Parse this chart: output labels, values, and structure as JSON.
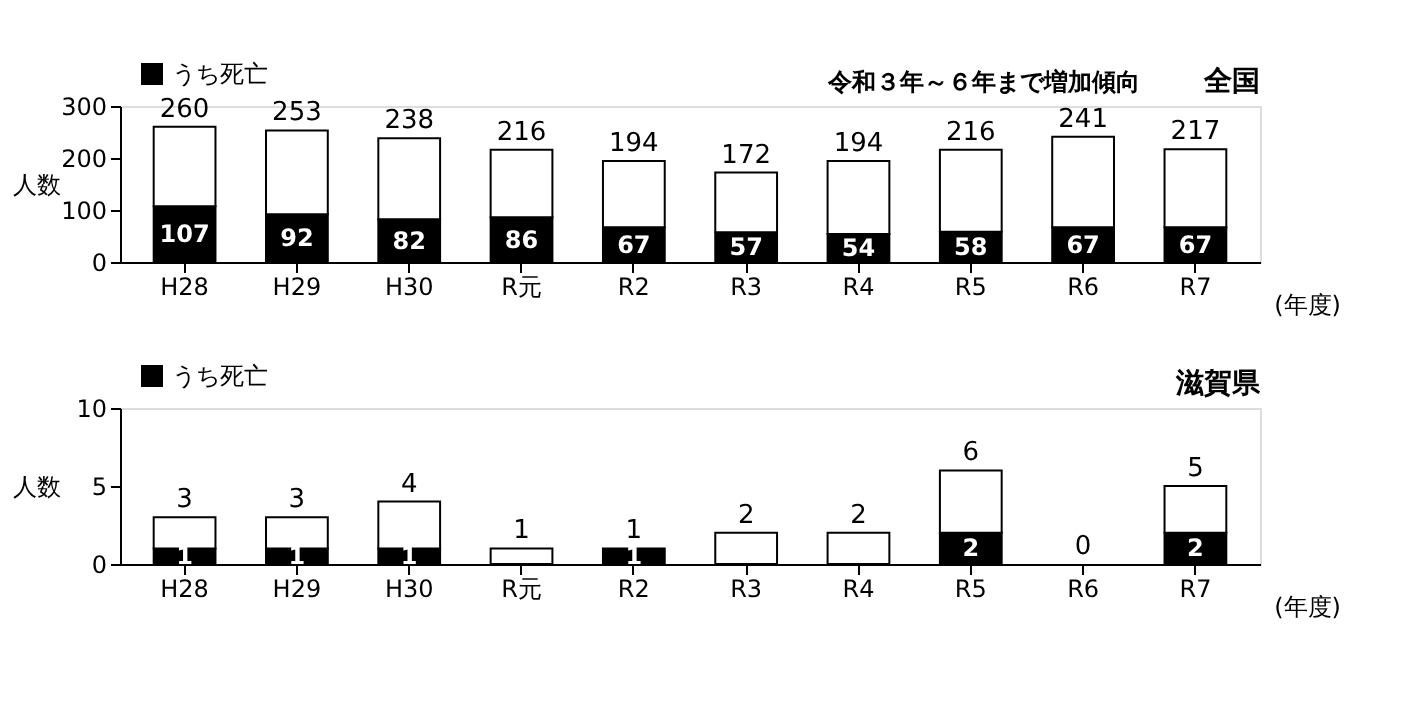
{
  "chart_data": [
    {
      "type": "bar",
      "title": "全国",
      "stacked": true,
      "categories": [
        "H28",
        "H29",
        "H30",
        "R元",
        "R2",
        "R3",
        "R4",
        "R5",
        "R6",
        "R7"
      ],
      "xlabel": "(年度)",
      "ylabel": "人数",
      "ylim": [
        0,
        300
      ],
      "yticks": [
        0,
        100,
        200,
        300
      ],
      "legend": "top left",
      "grid": false,
      "series": [
        {
          "name": "うち死亡",
          "color": "#000000",
          "values": [
            107,
            92,
            82,
            86,
            67,
            57,
            54,
            58,
            67,
            67
          ],
          "value_labels": [
            "107",
            "92",
            "82",
            "86",
            "67",
            "57",
            "54",
            "58",
            "67",
            "67"
          ]
        },
        {
          "color": "#ffffff",
          "values": [
            153,
            161,
            156,
            130,
            127,
            115,
            140,
            158,
            174,
            150
          ]
        }
      ],
      "totals": [
        "260",
        "253",
        "238",
        "216",
        "194",
        "172",
        "194",
        "216",
        "241",
        "217"
      ],
      "annotations": [
        "令和３年～６年まで増加傾向"
      ]
    },
    {
      "type": "bar",
      "title": "滋賀県",
      "stacked": true,
      "categories": [
        "H28",
        "H29",
        "H30",
        "R元",
        "R2",
        "R3",
        "R4",
        "R5",
        "R6",
        "R7"
      ],
      "xlabel": "(年度)",
      "ylabel": "人数",
      "ylim": [
        0,
        10
      ],
      "yticks": [
        0,
        5,
        10
      ],
      "legend": "top left",
      "grid": false,
      "series": [
        {
          "name": "うち死亡",
          "color": "#000000",
          "values": [
            1,
            1,
            1,
            0,
            1,
            0,
            0,
            2,
            0,
            2
          ],
          "value_labels": [
            "1",
            "1",
            "1",
            null,
            "1",
            null,
            null,
            "2",
            null,
            "2"
          ]
        },
        {
          "color": "#ffffff",
          "values": [
            2,
            2,
            3,
            1,
            0,
            2,
            2,
            4,
            0,
            3
          ]
        }
      ],
      "totals": [
        "3",
        "3",
        "4",
        "1",
        "1",
        "2",
        "2",
        "6",
        "0",
        "5"
      ]
    }
  ]
}
